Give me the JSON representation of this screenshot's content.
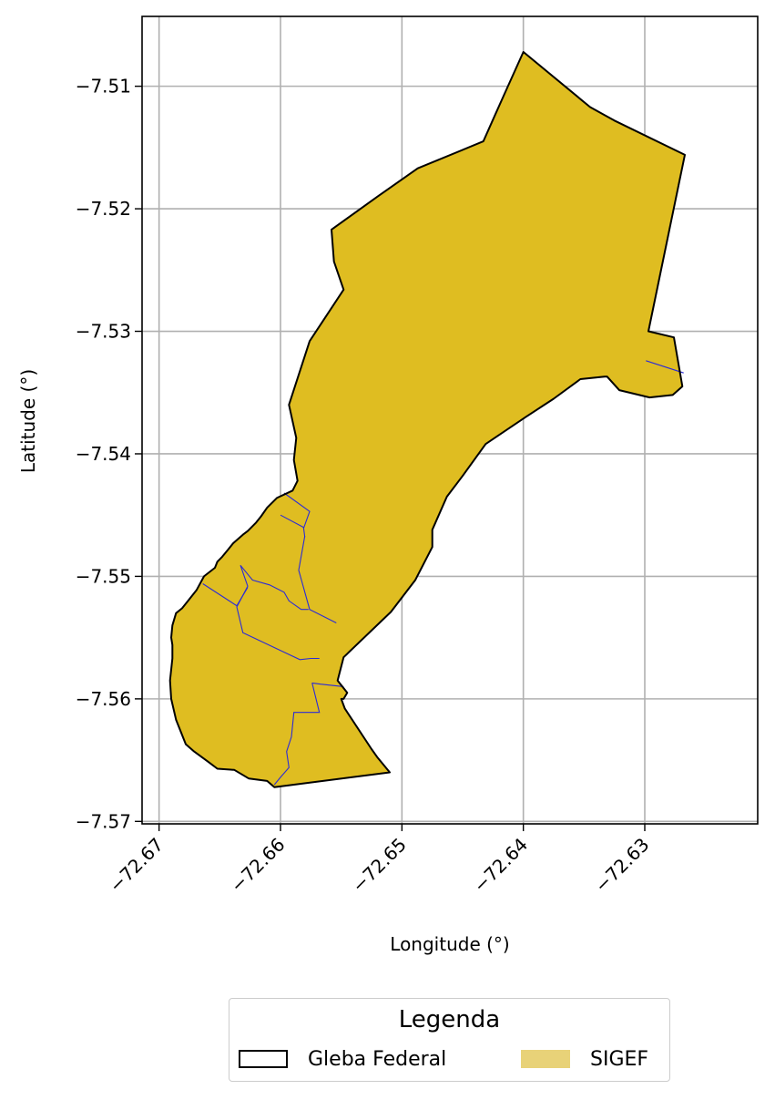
{
  "chart_data": {
    "type": "map",
    "xlabel": "Longitude (°)",
    "ylabel": "Latitude (°)",
    "xlim": [
      -72.6714,
      -72.6207
    ],
    "ylim": [
      -7.5702,
      -7.5043
    ],
    "x_ticks": [
      -72.67,
      -72.66,
      -72.65,
      -72.64,
      -72.63
    ],
    "x_tick_labels": [
      "−72.67",
      "−72.66",
      "−72.65",
      "−72.64",
      "−72.63"
    ],
    "y_ticks": [
      -7.51,
      -7.52,
      -7.53,
      -7.54,
      -7.55,
      -7.56,
      -7.57
    ],
    "y_tick_labels": [
      "−7.51",
      "−7.52",
      "−7.53",
      "−7.54",
      "−7.55",
      "−7.56",
      "−7.57"
    ],
    "grid": true,
    "colors": {
      "sigef_fill": "#dfbd21",
      "gleba_edge": "#000000",
      "sigef_edge": "#2b2bd6",
      "grid": "#b0b0b0"
    },
    "gleba_federal": [
      [
        -72.64,
        -7.5072
      ],
      [
        -72.6345,
        -7.5117
      ],
      [
        -72.6325,
        -7.5128
      ],
      [
        -72.6267,
        -7.5156
      ],
      [
        -72.6297,
        -7.53
      ],
      [
        -72.6276,
        -7.5305
      ],
      [
        -72.6269,
        -7.5345
      ],
      [
        -72.6277,
        -7.5352
      ],
      [
        -72.6296,
        -7.5354
      ],
      [
        -72.6321,
        -7.5348
      ],
      [
        -72.6331,
        -7.5337
      ],
      [
        -72.6333,
        -7.5337
      ],
      [
        -72.6353,
        -7.5339
      ],
      [
        -72.6375,
        -7.5355
      ],
      [
        -72.6398,
        -7.537
      ],
      [
        -72.6431,
        -7.5392
      ],
      [
        -72.645,
        -7.5418
      ],
      [
        -72.6463,
        -7.5435
      ],
      [
        -72.6475,
        -7.5462
      ],
      [
        -72.6475,
        -7.5476
      ],
      [
        -72.6489,
        -7.5503
      ],
      [
        -72.6509,
        -7.5529
      ],
      [
        -72.6548,
        -7.5566
      ],
      [
        -72.6553,
        -7.5585
      ],
      [
        -72.6545,
        -7.5595
      ],
      [
        -72.6548,
        -7.56
      ],
      [
        -72.655,
        -7.56
      ],
      [
        -72.6547,
        -7.5608
      ],
      [
        -72.6525,
        -7.5641
      ],
      [
        -72.652,
        -7.5648
      ],
      [
        -72.651,
        -7.566
      ],
      [
        -72.6605,
        -7.5672
      ],
      [
        -72.6611,
        -7.5667
      ],
      [
        -72.6626,
        -7.5665
      ],
      [
        -72.6638,
        -7.5658
      ],
      [
        -72.6652,
        -7.5657
      ],
      [
        -72.666,
        -7.5651
      ],
      [
        -72.6671,
        -7.5643
      ],
      [
        -72.6678,
        -7.5637
      ],
      [
        -72.6686,
        -7.5617
      ],
      [
        -72.669,
        -7.56
      ],
      [
        -72.6691,
        -7.5585
      ],
      [
        -72.6689,
        -7.5567
      ],
      [
        -72.6689,
        -7.5556
      ],
      [
        -72.669,
        -7.555
      ],
      [
        -72.6689,
        -7.554
      ],
      [
        -72.6686,
        -7.553
      ],
      [
        -72.6681,
        -7.5526
      ],
      [
        -72.6677,
        -7.5521
      ],
      [
        -72.6669,
        -7.5511
      ],
      [
        -72.6663,
        -7.55
      ],
      [
        -72.6654,
        -7.5493
      ],
      [
        -72.6652,
        -7.5488
      ],
      [
        -72.6648,
        -7.5484
      ],
      [
        -72.6643,
        -7.5478
      ],
      [
        -72.6639,
        -7.5473
      ],
      [
        -72.6631,
        -7.5466
      ],
      [
        -72.6627,
        -7.5463
      ],
      [
        -72.662,
        -7.5456
      ],
      [
        -72.6616,
        -7.5451
      ],
      [
        -72.6611,
        -7.5444
      ],
      [
        -72.6603,
        -7.5436
      ],
      [
        -72.659,
        -7.543
      ],
      [
        -72.6586,
        -7.5422
      ],
      [
        -72.6589,
        -7.5405
      ],
      [
        -72.6587,
        -7.5387
      ],
      [
        -72.6593,
        -7.536
      ],
      [
        -72.6576,
        -7.5308
      ],
      [
        -72.6548,
        -7.5266
      ],
      [
        -72.6556,
        -7.5243
      ],
      [
        -72.6558,
        -7.5217
      ],
      [
        -72.652,
        -7.519
      ],
      [
        -72.6487,
        -7.5167
      ],
      [
        -72.6433,
        -7.5145
      ],
      [
        -72.6424,
        -7.5125
      ],
      [
        -72.6415,
        -7.5105
      ]
    ],
    "sigef_parcels": [
      [
        [
          -72.6299,
          -7.5324
        ],
        [
          -72.6268,
          -7.5334
        ]
      ],
      [
        [
          -72.66,
          -7.545
        ],
        [
          -72.6581,
          -7.546
        ],
        [
          -72.658,
          -7.5468
        ]
      ],
      [
        [
          -72.6597,
          -7.5432
        ],
        [
          -72.6576,
          -7.5447
        ],
        [
          -72.6581,
          -7.5461
        ]
      ],
      [
        [
          -72.658,
          -7.5467
        ],
        [
          -72.6585,
          -7.5495
        ],
        [
          -72.6576,
          -7.5527
        ],
        [
          -72.6554,
          -7.5538
        ]
      ],
      [
        [
          -72.6633,
          -7.5491
        ],
        [
          -72.6623,
          -7.5503
        ],
        [
          -72.6609,
          -7.5507
        ],
        [
          -72.6597,
          -7.5513
        ],
        [
          -72.6593,
          -7.552
        ],
        [
          -72.6583,
          -7.5527
        ],
        [
          -72.6577,
          -7.5527
        ]
      ],
      [
        [
          -72.6664,
          -7.5506
        ],
        [
          -72.6636,
          -7.5524
        ],
        [
          -72.6627,
          -7.5509
        ]
      ],
      [
        [
          -72.6633,
          -7.5491
        ],
        [
          -72.6627,
          -7.5508
        ],
        [
          -72.6636,
          -7.5525
        ],
        [
          -72.6631,
          -7.5546
        ],
        [
          -72.6599,
          -7.5561
        ],
        [
          -72.6584,
          -7.5568
        ],
        [
          -72.6575,
          -7.5567
        ],
        [
          -72.6568,
          -7.5567
        ]
      ],
      [
        [
          -72.6574,
          -7.5587
        ],
        [
          -72.6567,
          -7.5588
        ],
        [
          -72.6548,
          -7.559
        ]
      ],
      [
        [
          -72.6574,
          -7.5587
        ],
        [
          -72.6568,
          -7.5611
        ],
        [
          -72.6589,
          -7.5611
        ],
        [
          -72.6591,
          -7.5631
        ],
        [
          -72.6595,
          -7.5643
        ],
        [
          -72.6593,
          -7.5656
        ],
        [
          -72.66,
          -7.5664
        ],
        [
          -72.6605,
          -7.567
        ]
      ]
    ]
  },
  "legend": {
    "title": "Legenda",
    "items": [
      {
        "label": "Gleba Federal",
        "symbol": "outline"
      },
      {
        "label": "SIGEF",
        "symbol": "fill",
        "color": "#e8d278"
      }
    ]
  }
}
